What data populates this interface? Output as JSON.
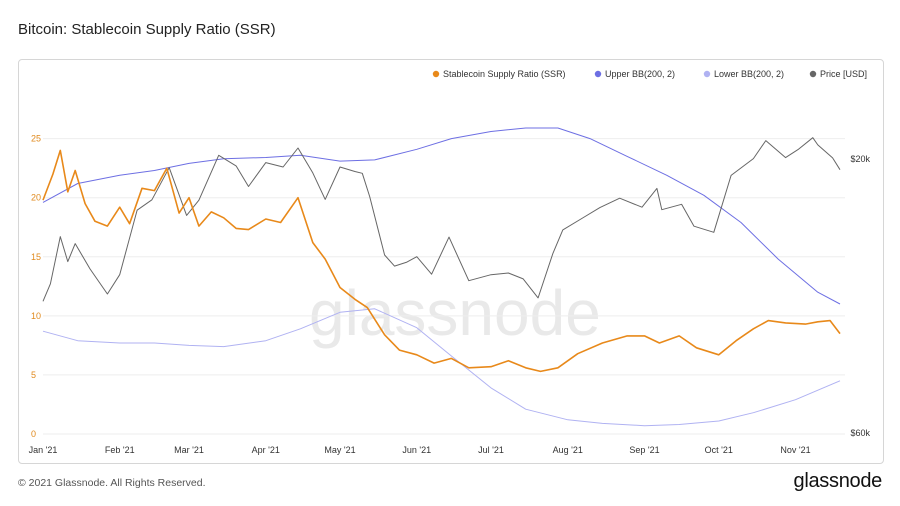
{
  "page": {
    "title": "Bitcoin: Stablecoin Supply Ratio (SSR)",
    "copyright": "© 2021 Glassnode. All Rights Reserved.",
    "logo": "glassnode",
    "watermark": "glassnode"
  },
  "chart_data": {
    "type": "line",
    "title": "Bitcoin: Stablecoin Supply Ratio (SSR)",
    "x_tick_labels": [
      "Jan '21",
      "Feb '21",
      "Mar '21",
      "Apr '21",
      "May '21",
      "Jun '21",
      "Jul '21",
      "Aug '21",
      "Sep '21",
      "Oct '21",
      "Nov '21"
    ],
    "y_left": {
      "ylim": [
        0,
        27
      ],
      "ticks": [
        0,
        5,
        10,
        15,
        20,
        25
      ]
    },
    "y_right": {
      "scale": "log",
      "ticks": [
        "$20k",
        "$60k"
      ]
    },
    "grid": true,
    "legend_placement": "top-right",
    "series": [
      {
        "name": "Stablecoin Supply Ratio (SSR)",
        "axis": "left",
        "color": "#e8891a",
        "x": [
          "2021-01-01",
          "2021-01-05",
          "2021-01-08",
          "2021-01-11",
          "2021-01-14",
          "2021-01-18",
          "2021-01-22",
          "2021-01-27",
          "2021-02-01",
          "2021-02-05",
          "2021-02-10",
          "2021-02-15",
          "2021-02-20",
          "2021-02-25",
          "2021-03-01",
          "2021-03-05",
          "2021-03-10",
          "2021-03-15",
          "2021-03-20",
          "2021-03-25",
          "2021-04-01",
          "2021-04-07",
          "2021-04-14",
          "2021-04-20",
          "2021-04-25",
          "2021-05-01",
          "2021-05-07",
          "2021-05-12",
          "2021-05-19",
          "2021-05-25",
          "2021-06-01",
          "2021-06-08",
          "2021-06-15",
          "2021-06-22",
          "2021-07-01",
          "2021-07-08",
          "2021-07-15",
          "2021-07-21",
          "2021-07-28",
          "2021-08-05",
          "2021-08-15",
          "2021-08-25",
          "2021-09-01",
          "2021-09-07",
          "2021-09-15",
          "2021-09-22",
          "2021-10-01",
          "2021-10-08",
          "2021-10-15",
          "2021-10-21",
          "2021-10-28",
          "2021-11-05",
          "2021-11-10",
          "2021-11-15",
          "2021-11-19"
        ],
        "y": [
          19.8,
          22.0,
          24.0,
          20.5,
          22.3,
          19.5,
          18.0,
          17.6,
          19.2,
          17.8,
          20.8,
          20.6,
          22.5,
          18.7,
          20.0,
          17.6,
          18.8,
          18.3,
          17.4,
          17.3,
          18.2,
          17.9,
          20.0,
          16.2,
          14.8,
          12.4,
          11.4,
          10.7,
          8.4,
          7.1,
          6.7,
          6.0,
          6.4,
          5.6,
          5.7,
          6.2,
          5.6,
          5.3,
          5.6,
          6.8,
          7.7,
          8.3,
          8.3,
          7.7,
          8.3,
          7.3,
          6.7,
          7.9,
          8.9,
          9.6,
          9.4,
          9.3,
          9.5,
          9.6,
          8.5
        ]
      },
      {
        "name": "Upper BB(200, 2)",
        "axis": "left",
        "color": "#6d6fe3",
        "x": [
          "2021-01-01",
          "2021-01-15",
          "2021-02-01",
          "2021-02-15",
          "2021-03-01",
          "2021-03-15",
          "2021-04-01",
          "2021-04-15",
          "2021-05-01",
          "2021-05-15",
          "2021-06-01",
          "2021-06-15",
          "2021-07-01",
          "2021-07-15",
          "2021-07-28",
          "2021-08-10",
          "2021-08-25",
          "2021-09-10",
          "2021-09-25",
          "2021-10-10",
          "2021-10-25",
          "2021-11-10",
          "2021-11-19"
        ],
        "y": [
          19.6,
          21.2,
          21.9,
          22.3,
          22.9,
          23.3,
          23.4,
          23.6,
          23.1,
          23.2,
          24.1,
          25.0,
          25.6,
          25.9,
          25.9,
          25.0,
          23.5,
          21.9,
          20.2,
          17.9,
          14.8,
          12.0,
          11.0
        ]
      },
      {
        "name": "Lower BB(200, 2)",
        "axis": "left",
        "color": "#b0b2f2",
        "x": [
          "2021-01-01",
          "2021-01-15",
          "2021-02-01",
          "2021-02-15",
          "2021-03-01",
          "2021-03-15",
          "2021-04-01",
          "2021-04-15",
          "2021-05-01",
          "2021-05-15",
          "2021-06-01",
          "2021-06-15",
          "2021-07-01",
          "2021-07-15",
          "2021-08-01",
          "2021-08-15",
          "2021-09-01",
          "2021-09-15",
          "2021-10-01",
          "2021-10-15",
          "2021-11-01",
          "2021-11-19"
        ],
        "y": [
          8.7,
          7.9,
          7.7,
          7.7,
          7.5,
          7.4,
          7.9,
          8.9,
          10.3,
          10.6,
          9.0,
          6.6,
          3.9,
          2.1,
          1.2,
          0.9,
          0.7,
          0.8,
          1.1,
          1.8,
          2.9,
          4.5
        ]
      },
      {
        "name": "Price [USD]",
        "axis": "right",
        "color": "#666666",
        "x": [
          "2021-01-01",
          "2021-01-04",
          "2021-01-08",
          "2021-01-11",
          "2021-01-14",
          "2021-01-20",
          "2021-01-27",
          "2021-02-01",
          "2021-02-08",
          "2021-02-14",
          "2021-02-21",
          "2021-02-28",
          "2021-03-05",
          "2021-03-13",
          "2021-03-20",
          "2021-03-25",
          "2021-04-01",
          "2021-04-08",
          "2021-04-14",
          "2021-04-20",
          "2021-04-25",
          "2021-05-01",
          "2021-05-07",
          "2021-05-10",
          "2021-05-13",
          "2021-05-19",
          "2021-05-23",
          "2021-05-28",
          "2021-06-01",
          "2021-06-07",
          "2021-06-14",
          "2021-06-22",
          "2021-07-01",
          "2021-07-08",
          "2021-07-14",
          "2021-07-20",
          "2021-07-26",
          "2021-07-30",
          "2021-08-07",
          "2021-08-14",
          "2021-08-22",
          "2021-08-31",
          "2021-09-06",
          "2021-09-08",
          "2021-09-16",
          "2021-09-21",
          "2021-09-29",
          "2021-10-06",
          "2021-10-15",
          "2021-10-20",
          "2021-10-28",
          "2021-11-02",
          "2021-11-08",
          "2021-11-10",
          "2021-11-16",
          "2021-11-19"
        ],
        "y": [
          29300,
          32000,
          40600,
          35800,
          39200,
          34500,
          30400,
          33500,
          46400,
          48900,
          57500,
          45200,
          48800,
          61200,
          58000,
          52300,
          59000,
          57700,
          63500,
          56000,
          49000,
          57700,
          56400,
          55900,
          49700,
          37000,
          35000,
          35700,
          36700,
          33600,
          40500,
          32500,
          33500,
          33800,
          32800,
          29800,
          37300,
          42000,
          44600,
          47000,
          49300,
          47100,
          51800,
          46500,
          47800,
          42800,
          41500,
          55300,
          60200,
          65900,
          60500,
          63000,
          66900,
          64500,
          60400,
          56900
        ]
      }
    ]
  }
}
